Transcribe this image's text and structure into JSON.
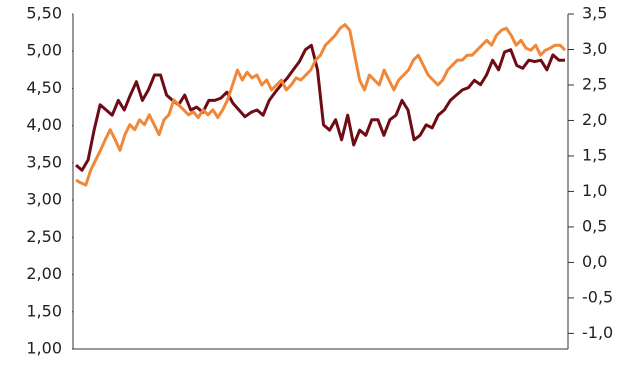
{
  "chart_data": {
    "type": "line",
    "ylim": [
      1,
      5.5
    ],
    "yticks": [
      {
        "value": 1,
        "label": "1,00"
      },
      {
        "value": 1.5,
        "label": "1,50"
      },
      {
        "value": 2,
        "label": "2,00"
      },
      {
        "value": 2.5,
        "label": "2,50"
      },
      {
        "value": 3,
        "label": "3,00"
      },
      {
        "value": 3.5,
        "label": "3,50"
      },
      {
        "value": 4,
        "label": "4,00"
      },
      {
        "value": 4.5,
        "label": "4,50"
      },
      {
        "value": 5,
        "label": "5,00"
      },
      {
        "value": 5.5,
        "label": "5,50"
      }
    ],
    "y2lim": [
      -1.22,
      3.5
    ],
    "y2ticks": [
      {
        "value": -1,
        "label": "-1,0"
      },
      {
        "value": -0.5,
        "label": "-0,5"
      },
      {
        "value": 0,
        "label": "0,0"
      },
      {
        "value": 0.5,
        "label": "0,5"
      },
      {
        "value": 1,
        "label": "1,0"
      },
      {
        "value": 1.5,
        "label": "1,5"
      },
      {
        "value": 2,
        "label": "2,0"
      },
      {
        "value": 2.5,
        "label": "2,5"
      },
      {
        "value": 3,
        "label": "3,0"
      },
      {
        "value": 3.5,
        "label": "3,5"
      }
    ],
    "series": [
      {
        "color": "#6e0b14",
        "values": [
          3.47,
          3.4,
          3.54,
          3.94,
          4.28,
          4.21,
          4.14,
          4.34,
          4.21,
          4.41,
          4.59,
          4.34,
          4.48,
          4.68,
          4.68,
          4.41,
          4.34,
          4.28,
          4.41,
          4.21,
          4.25,
          4.18,
          4.34,
          4.34,
          4.37,
          4.45,
          4.3,
          4.21,
          4.12,
          4.18,
          4.21,
          4.14,
          4.34,
          4.45,
          4.55,
          4.64,
          4.75,
          4.86,
          5.02,
          5.08,
          4.75,
          4.01,
          3.94,
          4.08,
          3.81,
          4.14,
          3.74,
          3.94,
          3.87,
          4.08,
          4.08,
          3.87,
          4.08,
          4.14,
          4.34,
          4.21,
          3.81,
          3.87,
          4.01,
          3.97,
          4.14,
          4.21,
          4.34,
          4.41,
          4.48,
          4.51,
          4.61,
          4.55,
          4.68,
          4.88,
          4.75,
          4.99,
          5.02,
          4.81,
          4.77,
          4.88,
          4.86,
          4.88,
          4.75,
          4.95,
          4.88,
          4.88
        ]
      },
      {
        "color": "#f0883a",
        "axis": "y2",
        "values": [
          1.16,
          1.12,
          1.09,
          1.3,
          1.44,
          1.58,
          1.73,
          1.87,
          1.73,
          1.58,
          1.8,
          1.94,
          1.87,
          2.01,
          1.94,
          2.08,
          1.94,
          1.8,
          2.01,
          2.08,
          2.29,
          2.22,
          2.15,
          2.08,
          2.12,
          2.04,
          2.15,
          2.08,
          2.15,
          2.04,
          2.15,
          2.29,
          2.5,
          2.71,
          2.57,
          2.68,
          2.6,
          2.64,
          2.5,
          2.57,
          2.43,
          2.5,
          2.57,
          2.43,
          2.5,
          2.6,
          2.57,
          2.64,
          2.71,
          2.85,
          2.92,
          3.06,
          3.13,
          3.2,
          3.3,
          3.35,
          3.27,
          2.92,
          2.57,
          2.43,
          2.64,
          2.57,
          2.5,
          2.71,
          2.57,
          2.43,
          2.57,
          2.64,
          2.71,
          2.85,
          2.92,
          2.78,
          2.64,
          2.57,
          2.5,
          2.57,
          2.71,
          2.78,
          2.85,
          2.85,
          2.92,
          2.92,
          2.99,
          3.06,
          3.13,
          3.06,
          3.2,
          3.27,
          3.3,
          3.2,
          3.06,
          3.13,
          3.02,
          2.99,
          3.06,
          2.92,
          2.99,
          3.02,
          3.06,
          3.06,
          2.99
        ]
      }
    ]
  }
}
